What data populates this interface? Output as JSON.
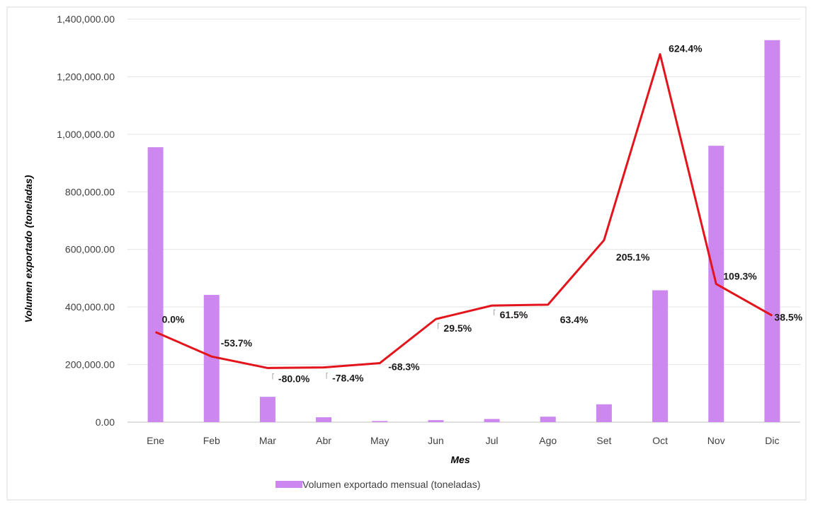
{
  "chart_data": {
    "type": "bar",
    "title": "",
    "xlabel": "Mes",
    "ylabel": "Volumen exportado (toneladas)",
    "ylim": [
      0,
      1400000
    ],
    "yticks": [
      "0.00",
      "200,000.00",
      "400,000.00",
      "600,000.00",
      "800,000.00",
      "1,000,000.00",
      "1,200,000.00",
      "1,400,000.00"
    ],
    "grid": true,
    "legend_position": "bottom",
    "categories": [
      "Ene",
      "Feb",
      "Mar",
      "Abr",
      "May",
      "Jun",
      "Jul",
      "Ago",
      "Set",
      "Oct",
      "Nov",
      "Dic"
    ],
    "series": [
      {
        "name": "Volumen exportado mensual (toneladas)",
        "type": "bar",
        "color": "#CC88EE",
        "values": [
          955000,
          442000,
          88000,
          17000,
          4000,
          7000,
          11000,
          19000,
          62000,
          458000,
          960000,
          1327000
        ]
      },
      {
        "name": "",
        "type": "line",
        "color": "#E3151C",
        "values": [
          313000,
          228000,
          188000,
          190000,
          205000,
          358000,
          405000,
          408000,
          632000,
          1278000,
          480000,
          370000
        ],
        "labels": [
          "0.0%",
          "-53.7%",
          "-80.0%",
          "-78.4%",
          "-68.3%",
          "29.5%",
          "61.5%",
          "63.4%",
          "205.1%",
          "624.4%",
          "109.3%",
          "38.5%"
        ]
      }
    ]
  }
}
